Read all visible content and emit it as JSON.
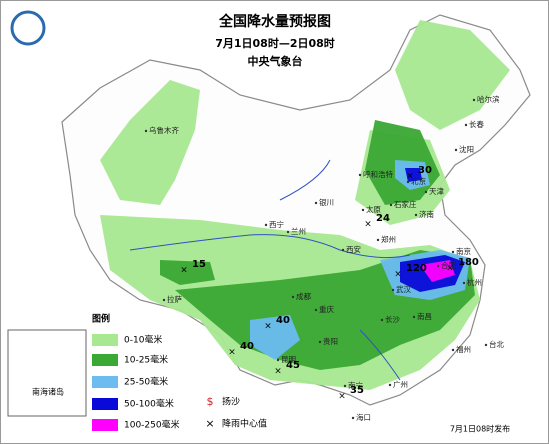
{
  "header": {
    "title": "全国降水量预报图",
    "period": "7月1日08时—2日08时",
    "agency": "中央气象台"
  },
  "legend": {
    "title": "图例",
    "items": [
      {
        "label": "0-10毫米",
        "color": "#a8e890"
      },
      {
        "label": "10-25毫米",
        "color": "#3aa834"
      },
      {
        "label": "25-50毫米",
        "color": "#6cbcf0"
      },
      {
        "label": "50-100毫米",
        "color": "#0a0ad8"
      },
      {
        "label": "100-250毫米",
        "color": "#ff00ff"
      }
    ],
    "symbols": [
      {
        "label": "扬沙",
        "mark": "$"
      },
      {
        "label": "降雨中心值",
        "mark": "×"
      }
    ]
  },
  "cities": [
    "乌鲁木齐",
    "哈尔滨",
    "长春",
    "沈阳",
    "呼和浩特",
    "北京",
    "天津",
    "石家庄",
    "太原",
    "济南",
    "银川",
    "西宁",
    "兰州",
    "郑州",
    "西安",
    "南京",
    "合肥",
    "成都",
    "拉萨",
    "重庆",
    "武汉",
    "长沙",
    "南昌",
    "杭州",
    "贵阳",
    "昆明",
    "福州",
    "南宁",
    "广州",
    "台北",
    "海口"
  ],
  "rain_centers": [
    30,
    24,
    15,
    120,
    180,
    40,
    40,
    45,
    35
  ],
  "inset": "南海诸岛",
  "footer": "7月1日08时发布"
}
